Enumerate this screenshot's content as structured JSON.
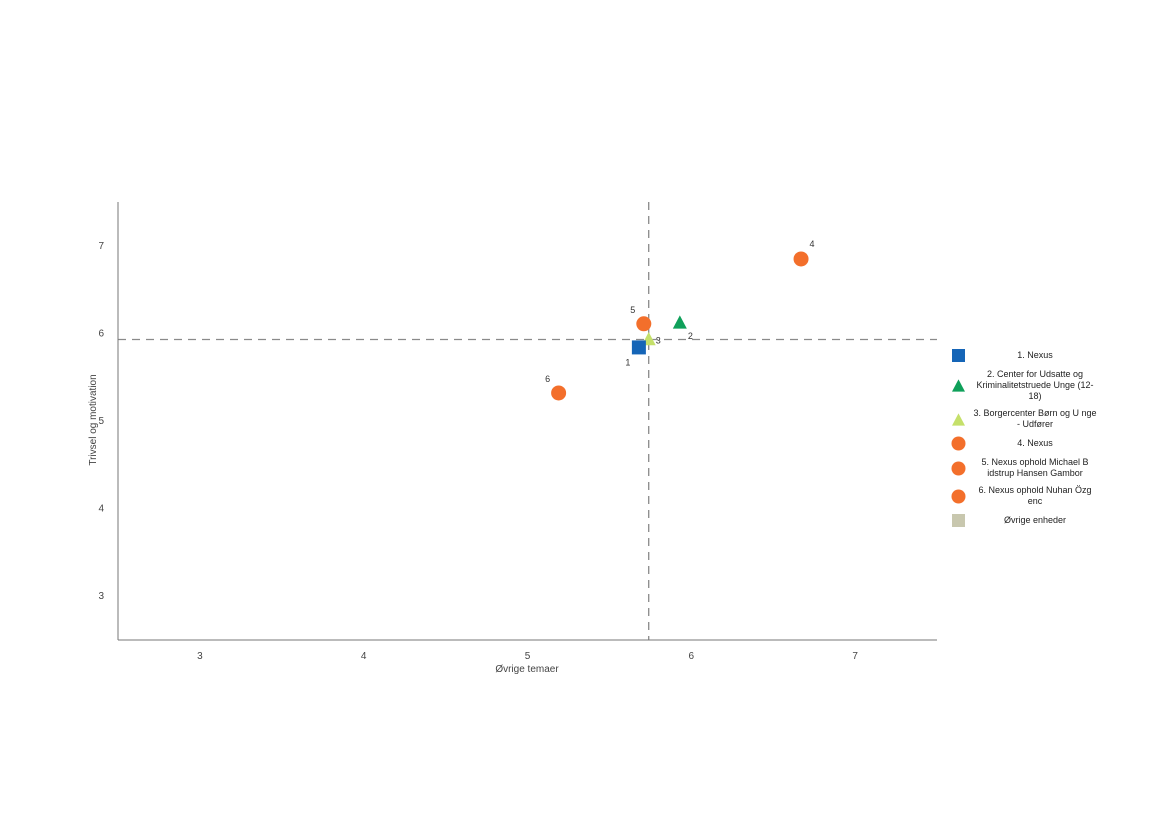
{
  "chart_data": {
    "type": "scatter",
    "xlabel": "Øvrige temaer",
    "ylabel": "Trivsel og motivation",
    "xlim": [
      2.5,
      7.5
    ],
    "ylim": [
      2.5,
      7.5
    ],
    "x_ticks": [
      "3",
      "4",
      "5",
      "6",
      "7"
    ],
    "y_ticks": [
      "3",
      "4",
      "5",
      "6",
      "7"
    ],
    "reference_lines": {
      "x": 5.74,
      "y": 5.93,
      "style": "dashed"
    },
    "grid": false,
    "legend_position": "right",
    "series": [
      {
        "name": "1. Nexus",
        "label": "1",
        "x": 5.68,
        "y": 5.84,
        "marker": "square",
        "color": "#1565b7"
      },
      {
        "name": "2. Center for Udsatte og Kriminalitetstruede Unge (12-18)",
        "label": "2",
        "x": 5.93,
        "y": 6.13,
        "marker": "triangle",
        "color": "#0fa05a"
      },
      {
        "name": "3. Borgercenter Børn og U nge - Udfører",
        "label": "3",
        "x": 5.74,
        "y": 5.94,
        "marker": "triangle",
        "color": "#c5e06a"
      },
      {
        "name": "4. Nexus",
        "label": "4",
        "x": 6.67,
        "y": 6.85,
        "marker": "circle",
        "color": "#f36f2b"
      },
      {
        "name": "5. Nexus ophold Michael B idstrup Hansen Gambor",
        "label": "5",
        "x": 5.71,
        "y": 6.11,
        "marker": "circle",
        "color": "#f36f2b"
      },
      {
        "name": "6. Nexus ophold Nuhan Özg enc",
        "label": "6",
        "x": 5.19,
        "y": 5.32,
        "marker": "circle",
        "color": "#f36f2b"
      },
      {
        "name": "Øvrige enheder",
        "marker": "square",
        "color": "#c8c7ae"
      }
    ]
  }
}
